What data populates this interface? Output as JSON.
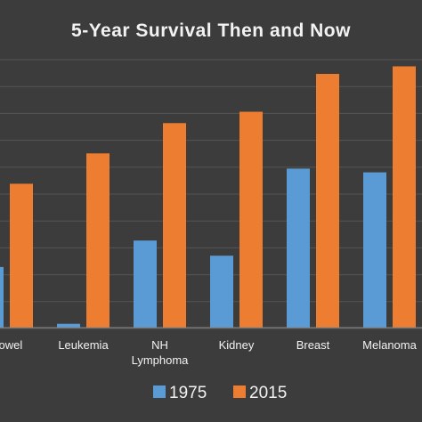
{
  "chart_data": {
    "type": "bar",
    "title": "5-Year Survival Then and Now",
    "xlabel": "",
    "ylabel": "",
    "categories": [
      [
        "Bowel"
      ],
      [
        "Leukemia"
      ],
      [
        "NH",
        "Lymphoma"
      ],
      [
        "Kidney"
      ],
      [
        "Breast"
      ],
      [
        "Melanoma"
      ]
    ],
    "series": [
      {
        "name": "1975",
        "values": [
          49,
          34,
          56,
          52,
          75,
          74
        ],
        "color": "#5B9BD5"
      },
      {
        "name": "2015",
        "values": [
          71,
          79,
          87,
          90,
          100,
          102
        ],
        "color": "#ED7D31"
      }
    ],
    "ylim": [
      33,
      104
    ],
    "grid": true,
    "legend": "bottom",
    "background_color": "#3C3C3C",
    "text_color": "#F2F2F2",
    "grid_color": "#555555"
  }
}
